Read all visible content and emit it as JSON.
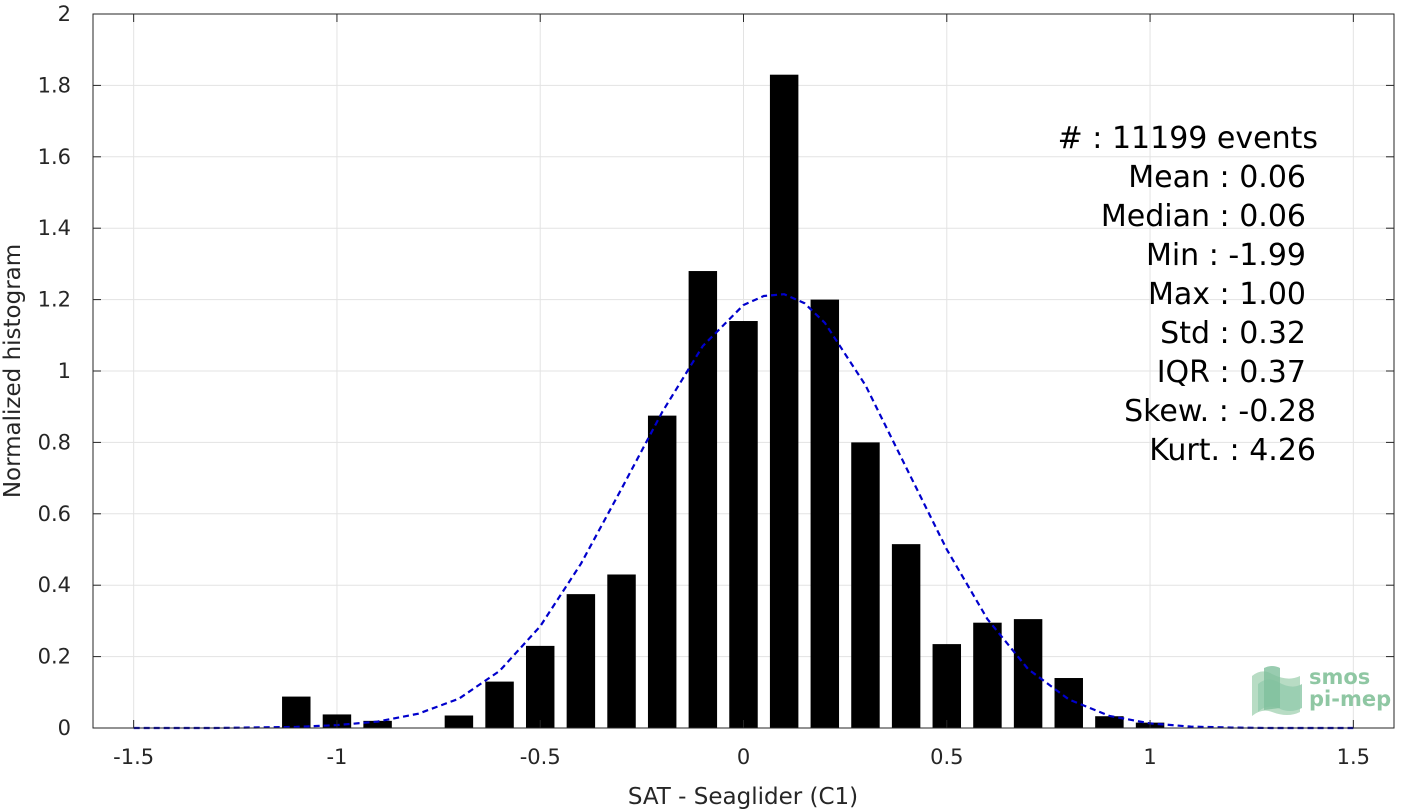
{
  "chart_data": {
    "type": "bar",
    "xlabel": "SAT - Seaglider (C1)",
    "ylabel": "Normalized histogram",
    "xlim": [
      -1.6,
      1.6
    ],
    "ylim": [
      0,
      2
    ],
    "grid": true,
    "x_ticks": [
      -1.5,
      -1,
      -0.5,
      0,
      0.5,
      1,
      1.5
    ],
    "x_tick_labels": [
      "-1.5",
      "-1",
      "-0.5",
      "0",
      "0.5",
      "1",
      "1.5"
    ],
    "y_ticks": [
      0,
      0.2,
      0.4,
      0.6,
      0.8,
      1,
      1.2,
      1.4,
      1.6,
      1.8,
      2
    ],
    "y_tick_labels": [
      "0",
      "0.2",
      "0.4",
      "0.6",
      "0.8",
      "1",
      "1.2",
      "1.4",
      "1.6",
      "1.8",
      "2"
    ],
    "bar_width": 0.07,
    "bar_color": "#000000",
    "bars": {
      "x": [
        -1.1,
        -1.0,
        -0.9,
        -0.7,
        -0.6,
        -0.5,
        -0.4,
        -0.3,
        -0.2,
        -0.1,
        0.0,
        0.1,
        0.2,
        0.3,
        0.4,
        0.5,
        0.6,
        0.7,
        0.8,
        0.9,
        1.0
      ],
      "values": [
        0.088,
        0.038,
        0.02,
        0.035,
        0.13,
        0.23,
        0.375,
        0.43,
        0.875,
        1.28,
        1.14,
        1.83,
        1.2,
        0.8,
        0.515,
        0.235,
        0.295,
        0.305,
        0.14,
        0.033,
        0.015
      ]
    },
    "fit_curve": {
      "style": "dashed",
      "color": "#0000cc",
      "x": [
        -1.5,
        -1.3,
        -1.1,
        -1.0,
        -0.9,
        -0.8,
        -0.7,
        -0.6,
        -0.5,
        -0.4,
        -0.3,
        -0.2,
        -0.1,
        0.0,
        0.05,
        0.1,
        0.15,
        0.2,
        0.3,
        0.4,
        0.5,
        0.6,
        0.7,
        0.8,
        0.9,
        1.0,
        1.1,
        1.2,
        1.3,
        1.5
      ],
      "y": [
        0.0,
        0.0,
        0.003,
        0.008,
        0.018,
        0.04,
        0.082,
        0.16,
        0.285,
        0.46,
        0.67,
        0.885,
        1.07,
        1.185,
        1.21,
        1.215,
        1.19,
        1.135,
        0.96,
        0.73,
        0.5,
        0.305,
        0.165,
        0.08,
        0.034,
        0.013,
        0.004,
        0.001,
        0.0,
        0.0
      ]
    },
    "annotations": [
      "#  : 11199 events",
      "Mean : 0.06",
      "Median : 0.06",
      "Min : -1.99",
      "Max : 1.00",
      "Std : 0.32",
      "IQR : 0.37",
      "Skew. : -0.28",
      "Kurt. : 4.26"
    ]
  },
  "logo": {
    "line1": "smos",
    "line2": "pi-mep",
    "color": "#8fc7a3"
  }
}
